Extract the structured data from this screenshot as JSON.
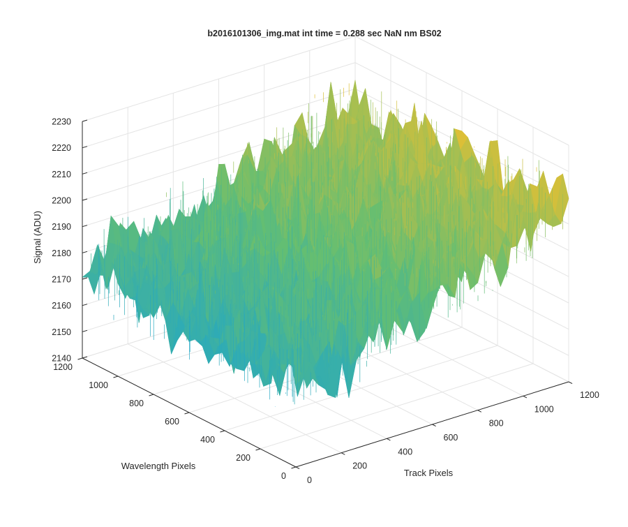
{
  "chart_data": {
    "type": "surface3d",
    "title": "b2016101306_img.mat int time = 0.288 sec  NaN nm BS02",
    "zlabel": "Signal (ADU)",
    "xlabel": "Track Pixels",
    "ylabel": "Wavelength Pixels",
    "xlim": [
      0,
      1200
    ],
    "ylim": [
      0,
      1200
    ],
    "zlim": [
      2140,
      2230
    ],
    "x_ticks": [
      0,
      200,
      400,
      600,
      800,
      1000,
      1200
    ],
    "y_ticks": [
      0,
      200,
      400,
      600,
      800,
      1000,
      1200
    ],
    "z_ticks": [
      2140,
      2150,
      2160,
      2170,
      2180,
      2190,
      2200,
      2210,
      2220,
      2230
    ],
    "grid": true,
    "colormap": "parula",
    "surface_shape": "noisy plane tilted from about 2168 ADU at track 0 to about 2205 ADU at track 1200",
    "corner_levels": [
      {
        "track": 0,
        "wavelength": 0,
        "signal": 2170
      },
      {
        "track": 1200,
        "wavelength": 0,
        "signal": 2205
      },
      {
        "track": 1200,
        "wavelength": 1200,
        "signal": 2204
      },
      {
        "track": 0,
        "wavelength": 1200,
        "signal": 2172
      }
    ],
    "noise_amplitude_adu": 10,
    "colors": {
      "low": "#1fa6c9",
      "mid": "#64be72",
      "high": "#e3bf33",
      "axis": "#262626",
      "grid": "#e4e4e4"
    }
  }
}
